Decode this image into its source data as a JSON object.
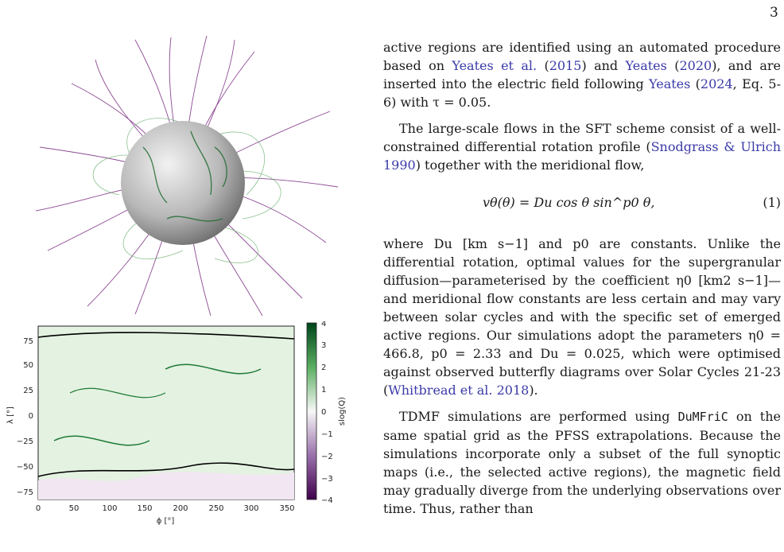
{
  "page": {
    "number": "3"
  },
  "figure": {
    "map": {
      "xlabel": "ϕ [°]",
      "ylabel": "λ [°]",
      "colorbar_label": "slog(Q)",
      "x_ticks": [
        "0",
        "50",
        "100",
        "150",
        "200",
        "250",
        "300",
        "350"
      ],
      "y_ticks": [
        "75",
        "50",
        "25",
        "0",
        "−25",
        "−50",
        "−75"
      ],
      "cbar_ticks": [
        "4",
        "3",
        "2",
        "1",
        "0",
        "−1",
        "−2",
        "−3",
        "−4"
      ],
      "colors": {
        "positive": "#1e7a34",
        "negative": "#6e1a78",
        "neutral": "#f4f0f4"
      }
    }
  },
  "text": {
    "p1": {
      "a": "active regions are identified using an automated procedure based on ",
      "c1": "Yeates et al.",
      "b": " (",
      "c2": "2015",
      "c": ") and ",
      "c3": "Yeates",
      "d": " (",
      "c4": "2020",
      "e": "), and are inserted into the electric field following ",
      "c5": "Yeates",
      "f": " (",
      "c6": "2024",
      "g": ", Eq. 5-6) with τ = 0.05."
    },
    "p2": {
      "a": "The large-scale flows in the SFT scheme consist of a well-constrained differential rotation profile (",
      "c1": "Snodgrass & Ulrich 1990",
      "b": ") together with the meridional flow,"
    },
    "equation": {
      "expr": "vθ(θ) = Du cos θ sin^p0 θ,",
      "number": "(1)"
    },
    "p3": "where Du [km s−1] and p0 are constants. Unlike the differential rotation, optimal values for the supergranular diffusion—parameterised by the coefficient η0 [km2 s−1]—and meridional flow constants are less certain and may vary between solar cycles and with the specific set of emerged active regions. Our simulations adopt the parameters η0 = 466.8, p0 = 2.33 and Du = 0.025, which were optimised against observed butterfly diagrams over Solar Cycles 21-23 (",
    "p3_cite": "Whitbread et al. 2018",
    "p3_end": ").",
    "p4_a": "TDMF simulations are performed using ",
    "p4_code": "DuMFriC",
    "p4_b": " on the same spatial grid as the PFSS extrapolations. Because the simulations incorporate only a subset of the full synoptic maps (i.e., the selected active regions), the magnetic field may gradually diverge from the underlying observations over time. Thus, rather than"
  }
}
